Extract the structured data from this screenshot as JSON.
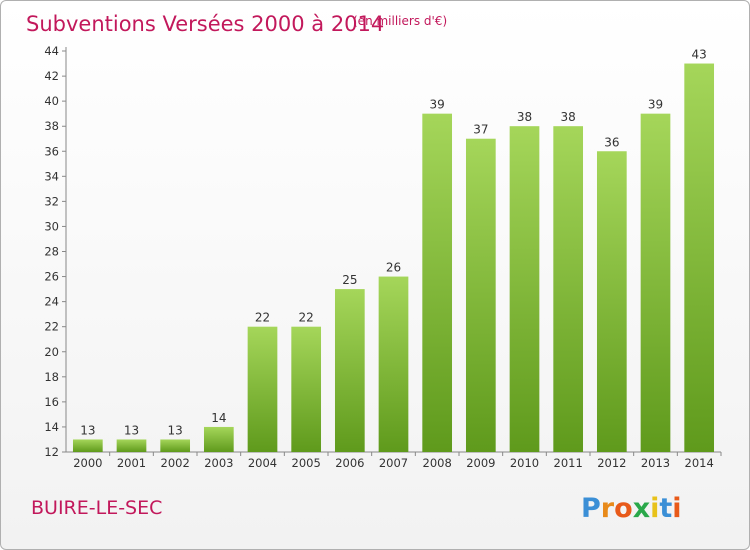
{
  "chart_data": {
    "type": "bar",
    "title": "Subventions Versées 2000 à 2014",
    "subtitle": "(en milliers d'€)",
    "categories": [
      "2000",
      "2001",
      "2002",
      "2003",
      "2004",
      "2005",
      "2006",
      "2007",
      "2008",
      "2009",
      "2010",
      "2011",
      "2012",
      "2013",
      "2014"
    ],
    "values": [
      13,
      13,
      13,
      14,
      22,
      22,
      25,
      26,
      39,
      37,
      38,
      38,
      36,
      39,
      43
    ],
    "ylim": [
      12,
      44
    ],
    "yticks": [
      12,
      14,
      16,
      18,
      20,
      22,
      24,
      26,
      28,
      30,
      32,
      34,
      36,
      38,
      40,
      42,
      44
    ],
    "grid": false,
    "bar_color": "#7dbb2e",
    "bar_color_light": "#a5d65a",
    "bar_color_dark": "#5f9a1c"
  },
  "commune": "BUIRE-LE-SEC",
  "logo": {
    "letters": [
      "P",
      "r",
      "o",
      "x",
      "i",
      "t",
      "i"
    ],
    "colors": [
      "#3b8fd6",
      "#e88a1a",
      "#e85a1a",
      "#2aa84a",
      "#e8c21a",
      "#3b8fd6",
      "#e85a1a"
    ]
  }
}
